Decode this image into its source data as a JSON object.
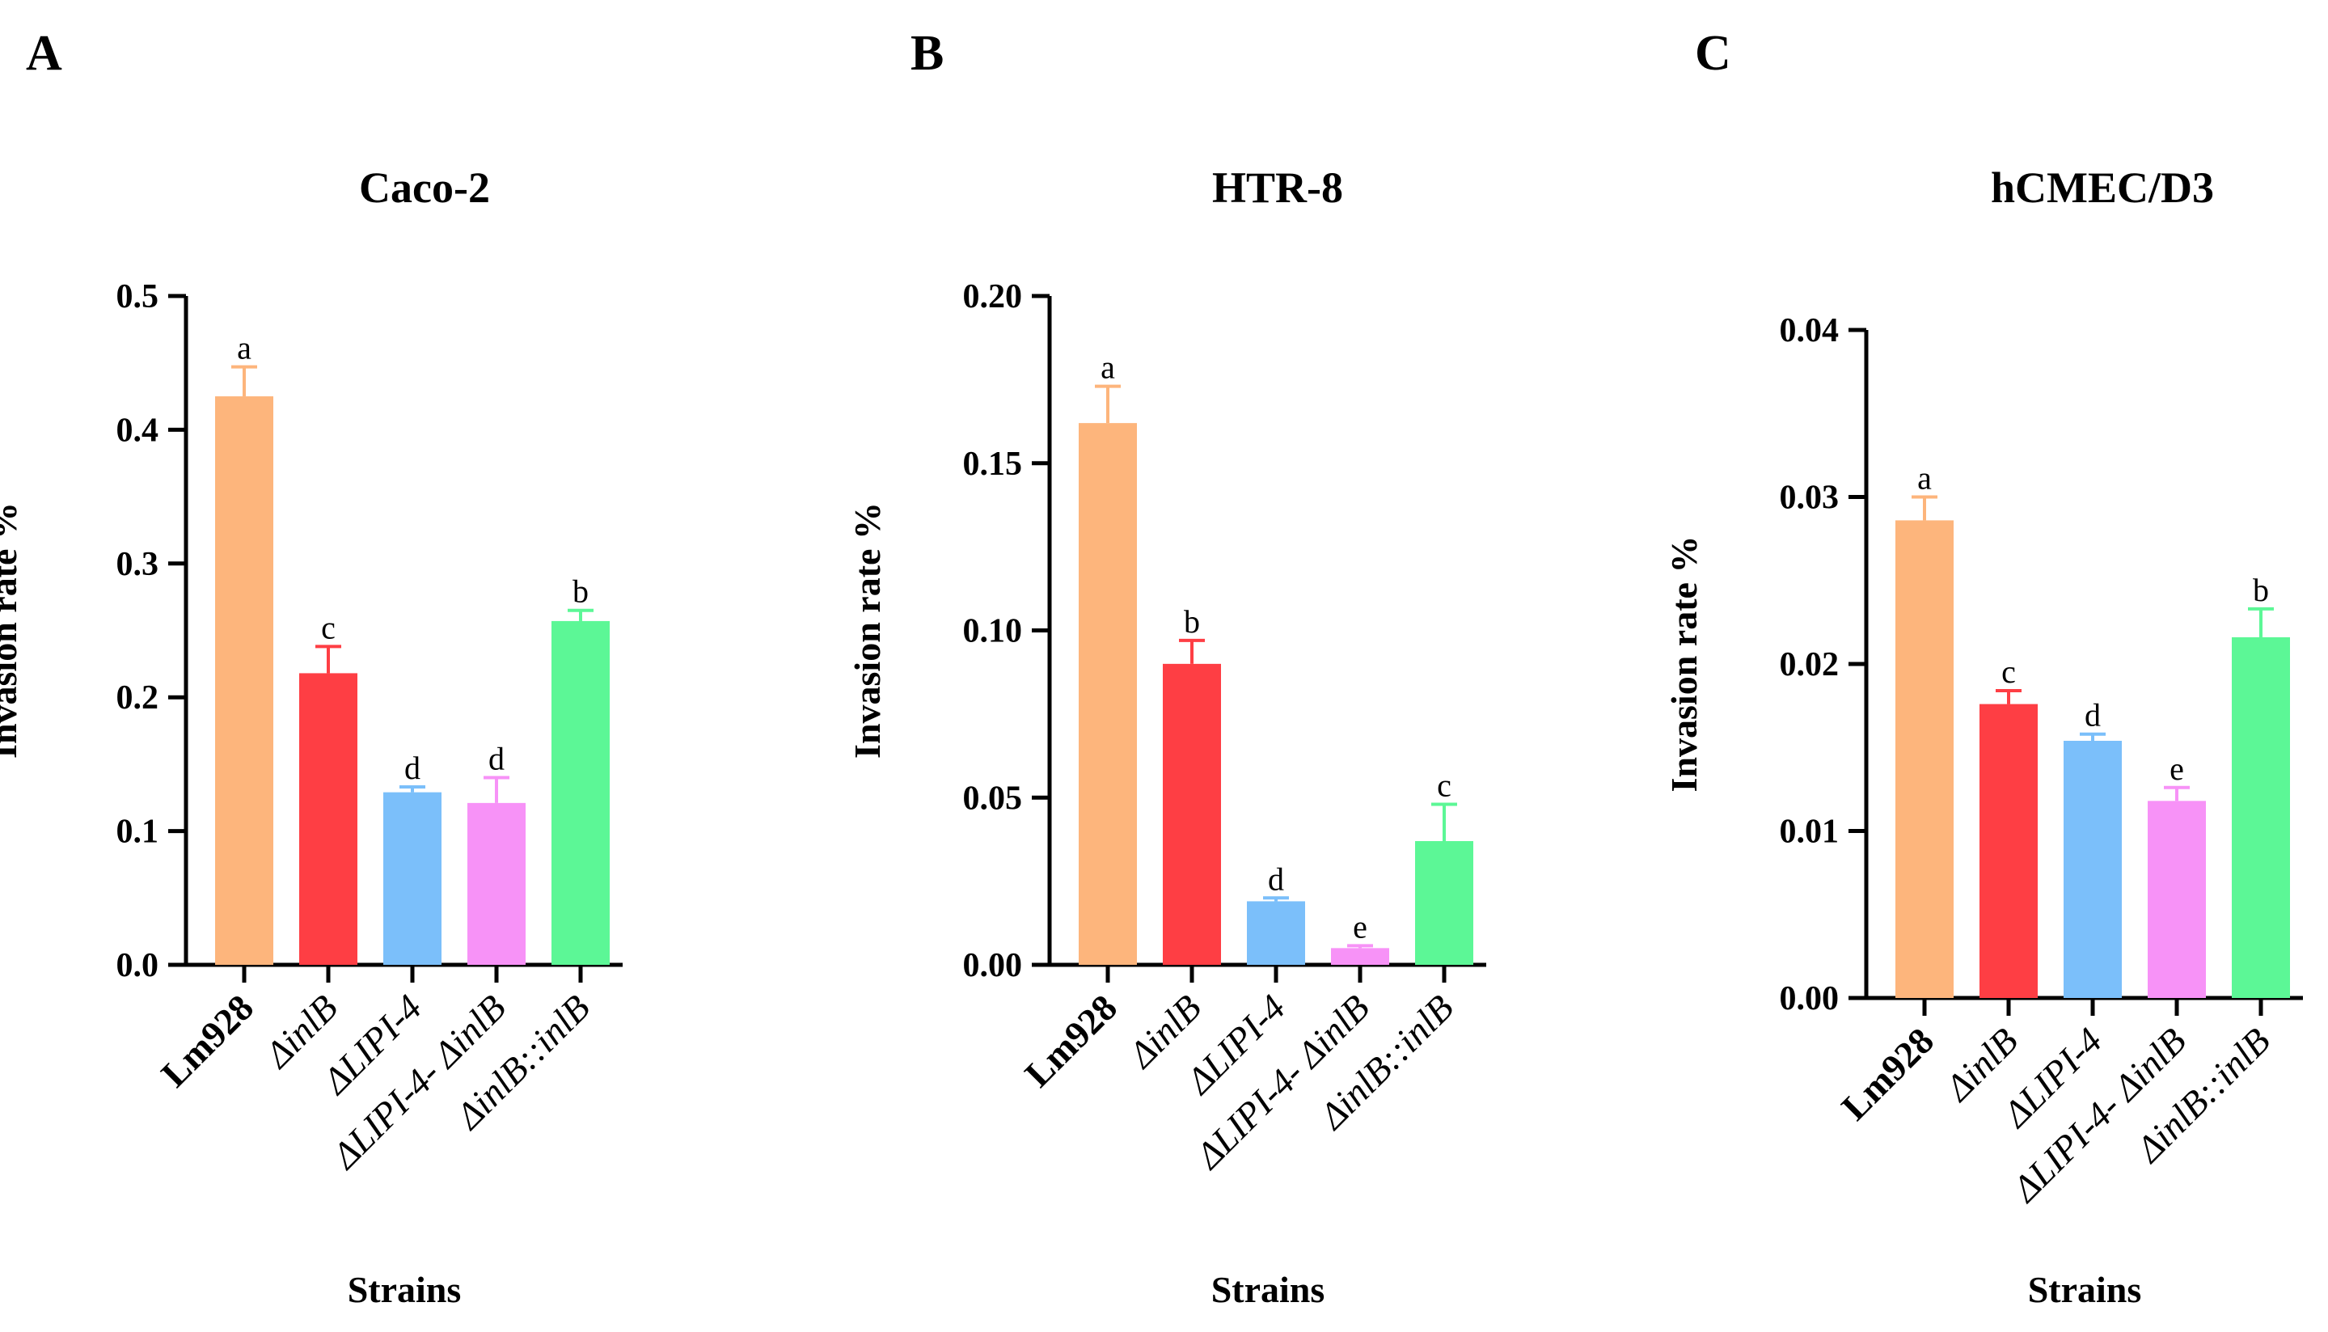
{
  "figure": {
    "colors": [
      "#fdb57c",
      "#fe3e44",
      "#7bbffa",
      "#f792f7",
      "#5cf796"
    ],
    "panels": [
      {
        "letter": "A",
        "chart_data": {
          "type": "bar",
          "title": "Caco-2",
          "xlabel": "Strains",
          "ylabel": "Invasion rate %",
          "ylim": [
            0,
            0.5
          ],
          "yticks": [
            "0.0",
            "0.1",
            "0.2",
            "0.3",
            "0.4",
            "0.5"
          ],
          "categories": [
            "Lm928",
            "ΔinlB",
            "ΔLIPI-4",
            "ΔLIPI-4- ΔinlB",
            "ΔinlB::inlB"
          ],
          "values": [
            0.425,
            0.218,
            0.129,
            0.121,
            0.257
          ],
          "errors": [
            0.022,
            0.02,
            0.004,
            0.019,
            0.008
          ],
          "significance": [
            "a",
            "c",
            "d",
            "d",
            "b"
          ]
        }
      },
      {
        "letter": "B",
        "chart_data": {
          "type": "bar",
          "title": "HTR-8",
          "xlabel": "Strains",
          "ylabel": "Invasion rate %",
          "ylim": [
            0,
            0.2
          ],
          "yticks": [
            "0.00",
            "0.05",
            "0.10",
            "0.15",
            "0.20"
          ],
          "categories": [
            "Lm928",
            "ΔinlB",
            "ΔLIPI-4",
            "ΔLIPI-4- ΔinlB",
            "ΔinlB::inlB"
          ],
          "values": [
            0.162,
            0.09,
            0.019,
            0.005,
            0.037
          ],
          "errors": [
            0.011,
            0.007,
            0.001,
            0.0007,
            0.011
          ],
          "significance": [
            "a",
            "b",
            "d",
            "e",
            "c"
          ]
        }
      },
      {
        "letter": "C",
        "chart_data": {
          "type": "bar",
          "title": "hCMEC/D3",
          "xlabel": "Strains",
          "ylabel": "Invasion rate %",
          "ylim": [
            0,
            0.04
          ],
          "yticks": [
            "0.00",
            "0.01",
            "0.02",
            "0.03",
            "0.04"
          ],
          "categories": [
            "Lm928",
            "ΔinlB",
            "ΔLIPI-4",
            "ΔLIPI-4- ΔinlB",
            "ΔinlB::inlB"
          ],
          "values": [
            0.0286,
            0.0176,
            0.0154,
            0.0118,
            0.0216
          ],
          "errors": [
            0.0014,
            0.0008,
            0.0004,
            0.0008,
            0.0017
          ],
          "significance": [
            "a",
            "c",
            "d",
            "e",
            "b"
          ]
        }
      }
    ]
  }
}
